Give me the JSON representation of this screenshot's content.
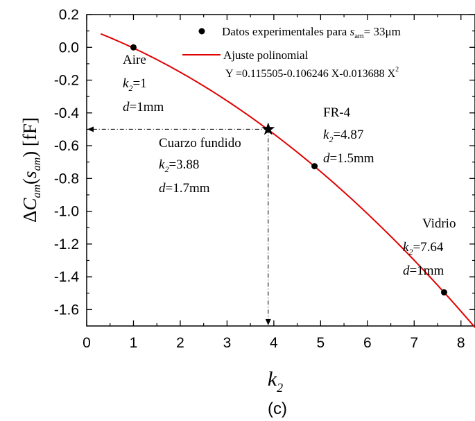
{
  "chart_data": {
    "type": "scatter",
    "xlim": [
      0,
      8.3
    ],
    "ylim": [
      -1.7,
      0.2
    ],
    "x_ticks": [
      "0",
      "1",
      "2",
      "3",
      "4",
      "5",
      "6",
      "7",
      "8"
    ],
    "y_ticks": [
      "0.2",
      "0.0",
      "-0.2",
      "-0.4",
      "-0.6",
      "-0.8",
      "-1.0",
      "-1.2",
      "-1.4",
      "-1.6"
    ],
    "xlabel": {
      "main": "k",
      "sub": "2"
    },
    "ylabel": {
      "delta": "Δ",
      "c": "C",
      "c_sub": "am",
      "open": "(",
      "s": "s",
      "s_sub": "am",
      "close": ")",
      "unit": " [fF]"
    },
    "caption": "(c)",
    "series": [
      {
        "name": "Datos experimentales para s_am = 33μm",
        "points": [
          {
            "x": 1.0,
            "y": 0.0
          },
          {
            "x": 4.87,
            "y": -0.725
          },
          {
            "x": 7.64,
            "y": -1.495
          }
        ]
      }
    ],
    "fit": {
      "name": "Ajuste polinomial",
      "equation": "Y =0.115505-0.106246 X-0.013688 X",
      "equation_sup": "2",
      "coefficients": [
        0.115505,
        -0.106246,
        -0.013688
      ],
      "x_range": [
        0.3,
        8.3
      ],
      "color": "#e00000"
    },
    "highlight": {
      "x": 3.88,
      "y": -0.5
    },
    "legend": {
      "scatter_prefix": "Datos experimentales para ",
      "scatter_var": "s",
      "scatter_var_sub": "am",
      "scatter_suffix": "= 33μm",
      "line_label": "Ajuste polinomial",
      "placement": "top-right"
    },
    "annotations": [
      {
        "id": "aire",
        "name": "Aire",
        "k_value": "=1",
        "d_value": "=1mm"
      },
      {
        "id": "fr4",
        "name": "FR-4",
        "k_value": "=4.87",
        "d_value": "=1.5mm"
      },
      {
        "id": "cuarzo",
        "name": "Cuarzo fundido",
        "k_value": "=3.88",
        "d_value": "=1.7mm"
      },
      {
        "id": "vidrio",
        "name": "Vidrio",
        "k_value": "=7.64",
        "d_value": "=1mm"
      }
    ],
    "k_var": "k",
    "k_sub": "2",
    "d_var": "d"
  }
}
